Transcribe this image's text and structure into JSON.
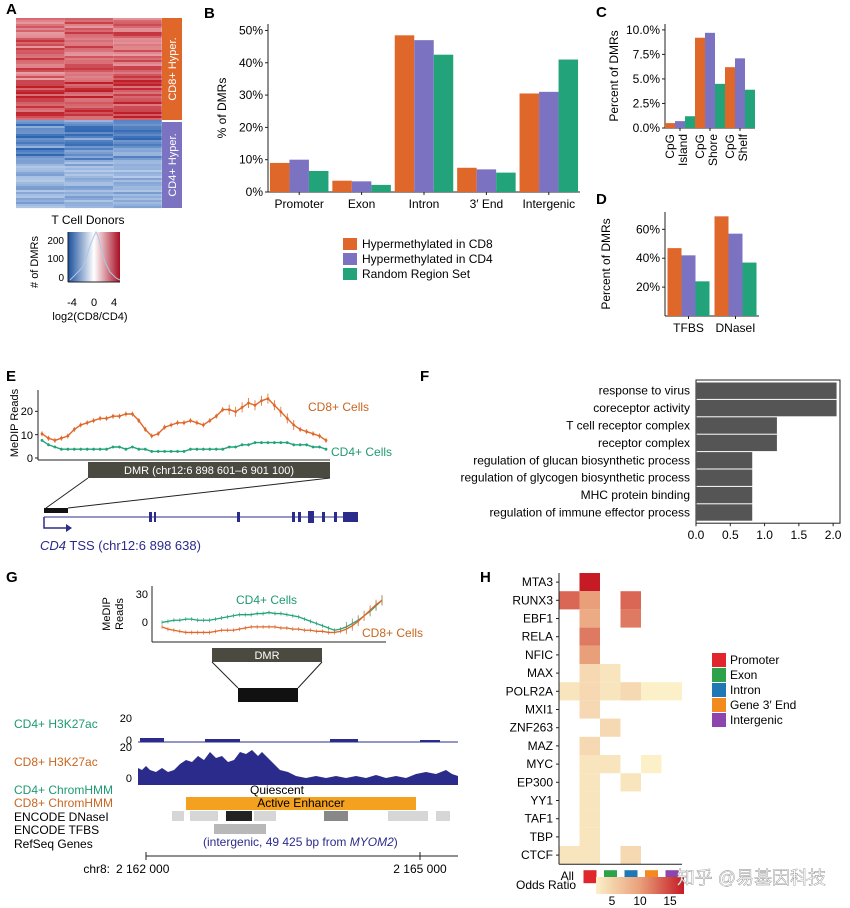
{
  "panel_labels": {
    "A": "A",
    "B": "B",
    "C": "C",
    "D": "D",
    "E": "E",
    "F": "F",
    "G": "G",
    "H": "H"
  },
  "colors": {
    "cd8": "#e0672a",
    "cd4": "#7b73c2",
    "random": "#22a37a",
    "axis": "#222222",
    "gray_bar": "#555555",
    "track_blue": "#2b2b8c",
    "enhancer": "#f4a11f"
  },
  "panel_a": {
    "side_labels": [
      "CD8+ Hyper.",
      "CD4+ Hyper."
    ],
    "xlabel": "T Cell Donors",
    "legend_ylabel": "# of DMRs",
    "legend_yticks": [
      "200",
      "100",
      "0"
    ],
    "legend_xticks": [
      "-4",
      "0",
      "4"
    ],
    "legend_xlabel": "log2(CD8/CD4)"
  },
  "panel_b_legend": [
    "Hypermethylated in CD8",
    "Hypermethylated in CD4",
    "Random Region Set"
  ],
  "panel_e": {
    "ylabel": "MeDIP Reads",
    "yticks": [
      "20",
      "10",
      "0"
    ],
    "cd8_label": "CD8+ Cells",
    "cd4_label": "CD4+ Cells",
    "dmr_label": "DMR (chr12:6 898 601–6 901 100)",
    "tss_gene": "CD4",
    "tss_text": "TSS (chr12:6 898 638)"
  },
  "panel_g": {
    "ylabel1": "MeDIP",
    "ylabel2": "Reads",
    "yticks": [
      "30",
      "0"
    ],
    "cd4_label": "CD4+ Cells",
    "cd8_label": "CD8+ Cells",
    "dmr_label": "DMR",
    "tracks": [
      "CD4+ H3K27ac",
      "CD8+ H3K27ac",
      "CD4+ ChromHMM",
      "CD8+ ChromHMM",
      "ENCODE DNaseI",
      "ENCODE TFBS",
      "RefSeq Genes"
    ],
    "track_ticks": [
      "20",
      "0",
      "20",
      "0"
    ],
    "quiescent": "Quiescent",
    "active_enhancer": "Active Enhancer",
    "refseq_prefix": "(intergenic, 49 425 bp from ",
    "refseq_gene": "MYOM2",
    "refseq_suffix": ")",
    "coord_prefix": "chr8:",
    "coord_left": "2 162 000",
    "coord_right": "2 165 000"
  },
  "panel_h_legend": [
    "Promoter",
    "Exon",
    "Intron",
    "Gene 3′ End",
    "Intergenic"
  ],
  "panel_h_legend_colors": [
    "#e0262c",
    "#2ca34a",
    "#1f77b4",
    "#f28a1e",
    "#8e44ad"
  ],
  "panel_h_scale": {
    "title": "Odds Ratio",
    "ticks": [
      "5",
      "10",
      "15"
    ]
  },
  "watermark": "知乎 @易基因科技",
  "chart_data": [
    {
      "id": "B",
      "type": "bar",
      "ylabel": "% of DMRs",
      "yticks": [
        "0%",
        "10%",
        "20%",
        "30%",
        "40%",
        "50%"
      ],
      "ylim": [
        0,
        50
      ],
      "categories": [
        "Promoter",
        "Exon",
        "Intron",
        "3′ End",
        "Intergenic"
      ],
      "series": [
        {
          "name": "Hypermethylated in CD8",
          "values": [
            9,
            3.5,
            48.5,
            7.5,
            30.5
          ]
        },
        {
          "name": "Hypermethylated in CD4",
          "values": [
            10,
            3.3,
            47,
            7,
            31
          ]
        },
        {
          "name": "Random Region Set",
          "values": [
            6.5,
            2.2,
            42.5,
            6,
            41
          ]
        }
      ]
    },
    {
      "id": "C",
      "type": "bar",
      "ylabel": "Percent of DMRs",
      "yticks": [
        "0.0%",
        "2.5%",
        "5.0%",
        "7.5%",
        "10.0%"
      ],
      "ylim": [
        0,
        10
      ],
      "categories": [
        "CpG Island",
        "CpG Shore",
        "CpG Shelf"
      ],
      "series": [
        {
          "name": "Hypermethylated in CD8",
          "values": [
            0.5,
            9.2,
            6.2
          ]
        },
        {
          "name": "Hypermethylated in CD4",
          "values": [
            0.7,
            9.7,
            7.1
          ]
        },
        {
          "name": "Random Region Set",
          "values": [
            1.2,
            4.5,
            3.9
          ]
        }
      ]
    },
    {
      "id": "D",
      "type": "bar",
      "ylabel": "Percent of DMRs",
      "yticks": [
        "20%",
        "40%",
        "60%"
      ],
      "ylim": [
        0,
        70
      ],
      "categories": [
        "TFBS",
        "DNaseI"
      ],
      "series": [
        {
          "name": "Hypermethylated in CD8",
          "values": [
            47,
            69
          ]
        },
        {
          "name": "Hypermethylated in CD4",
          "values": [
            42,
            57
          ]
        },
        {
          "name": "Random Region Set",
          "values": [
            24,
            37
          ]
        }
      ]
    },
    {
      "id": "F",
      "type": "bar",
      "orientation": "horizontal",
      "categories": [
        "response to virus",
        "coreceptor activity",
        "T cell receptor complex",
        "receptor complex",
        "regulation of glucan biosynthetic process",
        "regulation of glycogen biosynthetic process",
        "MHC protein binding",
        "regulation of immune effector process"
      ],
      "values": [
        2.05,
        2.05,
        1.18,
        1.18,
        0.82,
        0.82,
        0.82,
        0.82
      ],
      "xticks": [
        "0.0",
        "0.5",
        "1.0",
        "1.5",
        "2.0"
      ],
      "xlim": [
        0,
        2.1
      ]
    },
    {
      "id": "E",
      "type": "line",
      "ylim": [
        0,
        27
      ],
      "series": [
        {
          "name": "CD8+ Cells",
          "y": [
            11,
            9,
            8,
            9,
            10,
            13,
            15,
            16,
            17,
            18,
            18,
            19,
            19,
            20,
            20,
            17,
            13,
            10,
            11,
            14,
            15,
            16,
            16,
            17,
            16,
            15,
            17,
            19,
            22,
            22,
            21,
            23,
            25,
            24,
            26,
            27,
            24,
            21,
            18,
            15,
            13,
            12,
            11,
            10,
            8
          ]
        },
        {
          "name": "CD4+ Cells",
          "y": [
            8,
            6,
            5,
            4,
            4,
            4,
            4,
            4,
            4,
            4,
            4,
            5,
            5,
            4,
            5,
            4,
            4,
            3,
            3,
            3,
            3,
            3,
            3,
            4,
            4,
            4,
            4,
            4,
            4,
            5,
            5,
            6,
            6,
            7,
            7,
            7,
            7,
            7,
            7,
            6,
            6,
            6,
            5,
            5,
            4
          ]
        }
      ]
    },
    {
      "id": "G",
      "type": "line",
      "ylim": [
        -10,
        35
      ],
      "series": [
        {
          "name": "CD4+ Cells",
          "y": [
            4,
            5,
            6,
            6,
            7,
            7,
            6,
            6,
            6,
            7,
            8,
            9,
            10,
            11,
            11,
            11,
            12,
            12,
            13,
            12,
            12,
            11,
            10,
            9,
            7,
            5,
            3,
            1,
            -1,
            -3,
            -2,
            0,
            3,
            6,
            10,
            14,
            19,
            24
          ]
        },
        {
          "name": "CD8+ Cells",
          "y": [
            0,
            -2,
            -3,
            -4,
            -5,
            -5,
            -5,
            -5,
            -5,
            -4,
            -3,
            -3,
            -3,
            -2,
            -1,
            0,
            0,
            0,
            0,
            0,
            -1,
            -1,
            -2,
            -2,
            -3,
            -3,
            -4,
            -4,
            -5,
            -5,
            -4,
            -2,
            1,
            5,
            10,
            15,
            20,
            24
          ]
        }
      ]
    },
    {
      "id": "H",
      "type": "heatmap",
      "rows": [
        "MTA3",
        "RUNX3",
        "EBF1",
        "RELA",
        "NFIC",
        "MAX",
        "POLR2A",
        "MXI1",
        "ZNF263",
        "MAZ",
        "MYC",
        "EP300",
        "YY1",
        "TAF1",
        "TBP",
        "CTCF"
      ],
      "columns": [
        "All",
        "Promoter",
        "Exon",
        "Intron",
        "Gene 3′ End",
        "Intergenic"
      ],
      "values": [
        [
          null,
          16,
          null,
          null,
          null,
          null
        ],
        [
          12,
          9,
          null,
          12,
          null,
          null
        ],
        [
          null,
          8,
          null,
          11,
          null,
          null
        ],
        [
          null,
          11,
          null,
          null,
          null,
          null
        ],
        [
          null,
          9,
          null,
          null,
          null,
          null
        ],
        [
          null,
          4,
          3,
          null,
          null,
          null
        ],
        [
          3,
          4,
          3,
          4,
          2,
          2
        ],
        [
          null,
          4,
          null,
          null,
          null,
          null
        ],
        [
          null,
          null,
          4,
          null,
          null,
          null
        ],
        [
          null,
          4,
          null,
          null,
          null,
          null
        ],
        [
          null,
          3,
          3,
          null,
          2,
          null
        ],
        [
          null,
          3,
          null,
          3,
          null,
          null
        ],
        [
          null,
          3,
          null,
          null,
          null,
          null
        ],
        [
          null,
          3,
          null,
          null,
          null,
          null
        ],
        [
          null,
          3,
          null,
          null,
          null,
          null
        ],
        [
          3,
          3,
          null,
          4,
          null,
          null
        ]
      ]
    }
  ]
}
